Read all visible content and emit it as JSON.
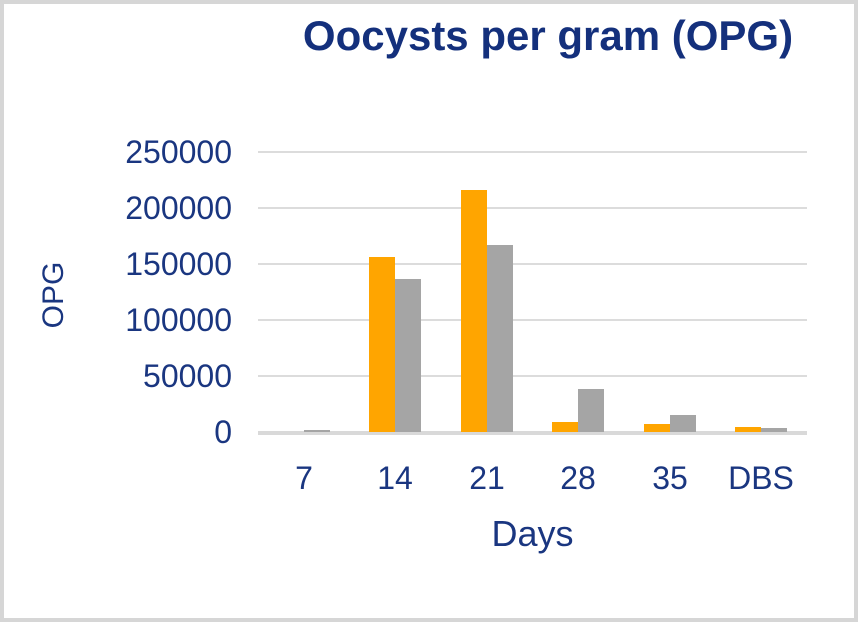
{
  "frame": {
    "border_color": "#d6d6d6",
    "background_color": "#ffffff"
  },
  "chart_data": {
    "type": "bar",
    "title": "Oocysts per gram (OPG)",
    "xlabel": "Days",
    "ylabel": "OPG",
    "categories": [
      "7",
      "14",
      "21",
      "28",
      "35",
      "DBS"
    ],
    "series": [
      {
        "name": "orange-series",
        "color": "#FFA500",
        "values": [
          0,
          156000,
          216000,
          8500,
          7500,
          4500
        ]
      },
      {
        "name": "gray-series",
        "color": "#A5A5A5",
        "values": [
          1500,
          137000,
          167000,
          38000,
          15500,
          4000
        ]
      }
    ],
    "y_ticks": [
      0,
      50000,
      100000,
      150000,
      200000,
      250000
    ],
    "ylim": [
      0,
      250000
    ],
    "grid": true,
    "legend_position": "none",
    "title_color": "#14307c",
    "axis_text_color": "#1a3680",
    "gridline_color": "#dcdcdc"
  }
}
